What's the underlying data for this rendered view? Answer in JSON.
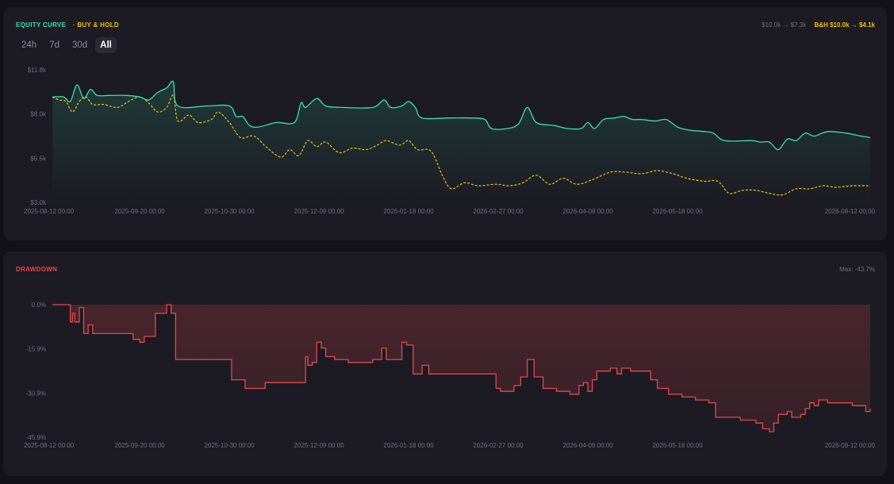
{
  "equity_panel": {
    "title": "EQUITY CURVE",
    "bh_legend": "· BUY & HOLD",
    "summary_strategy": "$10.0k → $7.3k",
    "summary_bh": "B&H $10.0k → $4.1k",
    "timeframes": [
      "24h",
      "7d",
      "30d",
      "All"
    ],
    "active_timeframe": "All"
  },
  "drawdown_panel": {
    "title": "DRAWDOWN",
    "max_label": "Max: -43.7%"
  },
  "colors": {
    "strategy": "#35e3b0",
    "buy_hold": "#f2c200",
    "drawdown": "#e54848"
  },
  "chart_data": [
    {
      "type": "line",
      "title": "EQUITY CURVE",
      "x": [
        "2025-08-12 00:00",
        "2025-09-20 00:00",
        "2025-10-30 00:00",
        "2025-12-09 00:00",
        "2026-01-18 00:00",
        "2026-02-27 00:00",
        "2026-04-08 00:00",
        "2026-05-18 00:00",
        "2026-08-12 00:00"
      ],
      "ytick_labels": [
        "$11.8k",
        "$8.0k",
        "$5.5k",
        "$3.0k"
      ],
      "ylim": [
        3000,
        11800
      ],
      "series": [
        {
          "name": "EQUITY CURVE",
          "points": [
            [
              "2025-08-12",
              10000
            ],
            [
              "2025-08-17",
              10000
            ],
            [
              "2025-08-20",
              9700
            ],
            [
              "2025-08-23",
              10800
            ],
            [
              "2025-08-26",
              9900
            ],
            [
              "2025-08-29",
              10500
            ],
            [
              "2025-09-01",
              10100
            ],
            [
              "2025-09-06",
              10100
            ],
            [
              "2025-09-14",
              10100
            ],
            [
              "2025-09-20",
              10000
            ],
            [
              "2025-09-24",
              9800
            ],
            [
              "2025-09-28",
              10300
            ],
            [
              "2025-10-02",
              10600
            ],
            [
              "2025-10-05",
              11000
            ],
            [
              "2025-10-07",
              9400
            ],
            [
              "2025-10-20",
              9400
            ],
            [
              "2025-10-30",
              9400
            ],
            [
              "2025-11-02",
              8700
            ],
            [
              "2025-11-05",
              8700
            ],
            [
              "2025-11-08",
              8100
            ],
            [
              "2025-11-12",
              8000
            ],
            [
              "2025-11-20",
              8300
            ],
            [
              "2025-11-28",
              8300
            ],
            [
              "2025-12-01",
              9600
            ],
            [
              "2025-12-03",
              9300
            ],
            [
              "2025-12-08",
              9900
            ],
            [
              "2025-12-12",
              9400
            ],
            [
              "2025-12-20",
              9300
            ],
            [
              "2026-01-02",
              9300
            ],
            [
              "2026-01-07",
              9800
            ],
            [
              "2026-01-10",
              9300
            ],
            [
              "2026-01-15",
              9400
            ],
            [
              "2026-01-18",
              9700
            ],
            [
              "2026-01-21",
              9300
            ],
            [
              "2026-01-24",
              8600
            ],
            [
              "2026-02-05",
              8600
            ],
            [
              "2026-02-15",
              8600
            ],
            [
              "2026-02-21",
              8500
            ],
            [
              "2026-02-24",
              7900
            ],
            [
              "2026-03-03",
              7900
            ],
            [
              "2026-03-08",
              8200
            ],
            [
              "2026-03-12",
              9300
            ],
            [
              "2026-03-16",
              8300
            ],
            [
              "2026-03-24",
              8100
            ],
            [
              "2026-03-30",
              7900
            ],
            [
              "2026-04-05",
              7900
            ],
            [
              "2026-04-08",
              8300
            ],
            [
              "2026-04-11",
              7900
            ],
            [
              "2026-04-15",
              8500
            ],
            [
              "2026-04-20",
              8600
            ],
            [
              "2026-04-24",
              8700
            ],
            [
              "2026-04-28",
              8500
            ],
            [
              "2026-05-02",
              8500
            ],
            [
              "2026-05-08",
              8400
            ],
            [
              "2026-05-13",
              8500
            ],
            [
              "2026-05-18",
              8000
            ],
            [
              "2026-05-23",
              7800
            ],
            [
              "2026-05-30",
              7700
            ],
            [
              "2026-06-03",
              7600
            ],
            [
              "2026-06-08",
              7100
            ],
            [
              "2026-06-20",
              7100
            ],
            [
              "2026-06-24",
              7000
            ],
            [
              "2026-06-28",
              7000
            ],
            [
              "2026-07-02",
              6500
            ],
            [
              "2026-07-06",
              7200
            ],
            [
              "2026-07-10",
              7100
            ],
            [
              "2026-07-14",
              7600
            ],
            [
              "2026-07-18",
              7400
            ],
            [
              "2026-07-24",
              7700
            ],
            [
              "2026-08-01",
              7600
            ],
            [
              "2026-08-08",
              7400
            ],
            [
              "2026-08-12",
              7300
            ]
          ]
        },
        {
          "name": "BUY & HOLD",
          "points": [
            [
              "2025-08-12",
              10000
            ],
            [
              "2025-08-15",
              9800
            ],
            [
              "2025-08-18",
              9700
            ],
            [
              "2025-08-21",
              9000
            ],
            [
              "2025-08-24",
              9700
            ],
            [
              "2025-08-27",
              10000
            ],
            [
              "2025-08-30",
              9500
            ],
            [
              "2025-09-04",
              9500
            ],
            [
              "2025-09-10",
              9300
            ],
            [
              "2025-09-15",
              9700
            ],
            [
              "2025-09-20",
              10000
            ],
            [
              "2025-09-24",
              9600
            ],
            [
              "2025-09-28",
              9000
            ],
            [
              "2025-10-02",
              9300
            ],
            [
              "2025-10-05",
              10100
            ],
            [
              "2025-10-07",
              8400
            ],
            [
              "2025-10-12",
              8800
            ],
            [
              "2025-10-16",
              8300
            ],
            [
              "2025-10-22",
              8500
            ],
            [
              "2025-10-25",
              9000
            ],
            [
              "2025-10-30",
              8300
            ],
            [
              "2025-11-04",
              7300
            ],
            [
              "2025-11-10",
              7400
            ],
            [
              "2025-11-16",
              6600
            ],
            [
              "2025-11-22",
              6000
            ],
            [
              "2025-11-26",
              6500
            ],
            [
              "2025-11-30",
              6100
            ],
            [
              "2025-12-04",
              7100
            ],
            [
              "2025-12-08",
              6700
            ],
            [
              "2025-12-12",
              7000
            ],
            [
              "2025-12-18",
              6300
            ],
            [
              "2025-12-24",
              6600
            ],
            [
              "2025-12-30",
              6500
            ],
            [
              "2026-01-04",
              6800
            ],
            [
              "2026-01-08",
              7100
            ],
            [
              "2026-01-14",
              6800
            ],
            [
              "2026-01-18",
              7100
            ],
            [
              "2026-01-22",
              6500
            ],
            [
              "2026-01-28",
              6400
            ],
            [
              "2026-02-02",
              4800
            ],
            [
              "2026-02-06",
              3900
            ],
            [
              "2026-02-12",
              4300
            ],
            [
              "2026-02-18",
              4100
            ],
            [
              "2026-02-26",
              4200
            ],
            [
              "2026-03-04",
              4100
            ],
            [
              "2026-03-10",
              4300
            ],
            [
              "2026-03-16",
              4800
            ],
            [
              "2026-03-22",
              4200
            ],
            [
              "2026-03-28",
              4600
            ],
            [
              "2026-04-03",
              4200
            ],
            [
              "2026-04-10",
              4500
            ],
            [
              "2026-04-18",
              5000
            ],
            [
              "2026-04-25",
              5000
            ],
            [
              "2026-05-02",
              4900
            ],
            [
              "2026-05-09",
              5100
            ],
            [
              "2026-05-16",
              4900
            ],
            [
              "2026-05-22",
              4600
            ],
            [
              "2026-05-30",
              4400
            ],
            [
              "2026-06-05",
              4400
            ],
            [
              "2026-06-10",
              3600
            ],
            [
              "2026-06-16",
              3800
            ],
            [
              "2026-06-22",
              3800
            ],
            [
              "2026-06-28",
              3600
            ],
            [
              "2026-07-04",
              3500
            ],
            [
              "2026-07-10",
              3900
            ],
            [
              "2026-07-16",
              3900
            ],
            [
              "2026-07-22",
              4100
            ],
            [
              "2026-07-28",
              4000
            ],
            [
              "2026-08-04",
              4100
            ],
            [
              "2026-08-12",
              4100
            ]
          ]
        }
      ]
    },
    {
      "type": "line",
      "title": "DRAWDOWN",
      "x": [
        "2025-08-12 00:00",
        "2025-09-20 00:00",
        "2025-10-30 00:00",
        "2025-12-09 00:00",
        "2026-01-18 00:00",
        "2026-02-27 00:00",
        "2026-04-08 00:00",
        "2026-05-18 00:00",
        "2026-08-12 00:00"
      ],
      "ytick_labels": [
        "0.0%",
        "-15.9%",
        "-30.9%",
        "-45.9%"
      ],
      "ylim": [
        -45.9,
        0
      ],
      "series": [
        {
          "name": "DRAWDOWN",
          "step": true,
          "points": [
            [
              "2025-08-12",
              0
            ],
            [
              "2025-08-19",
              0
            ],
            [
              "2025-08-20",
              -6
            ],
            [
              "2025-08-21",
              -3
            ],
            [
              "2025-08-22",
              -6
            ],
            [
              "2025-08-24",
              -1
            ],
            [
              "2025-08-26",
              -10
            ],
            [
              "2025-08-28",
              -7
            ],
            [
              "2025-08-30",
              -10
            ],
            [
              "2025-09-16",
              -10
            ],
            [
              "2025-09-17",
              -12
            ],
            [
              "2025-09-20",
              -13
            ],
            [
              "2025-09-22",
              -11
            ],
            [
              "2025-09-27",
              -3
            ],
            [
              "2025-10-02",
              0
            ],
            [
              "2025-10-04",
              -3
            ],
            [
              "2025-10-06",
              -19
            ],
            [
              "2025-10-31",
              -26
            ],
            [
              "2025-11-06",
              -29
            ],
            [
              "2025-11-15",
              -27
            ],
            [
              "2025-11-20",
              -27
            ],
            [
              "2025-11-26",
              -27
            ],
            [
              "2025-12-03",
              -18
            ],
            [
              "2025-12-04",
              -21
            ],
            [
              "2025-12-06",
              -20
            ],
            [
              "2025-12-08",
              -13
            ],
            [
              "2025-12-10",
              -15
            ],
            [
              "2025-12-12",
              -18
            ],
            [
              "2025-12-16",
              -19
            ],
            [
              "2025-12-22",
              -20
            ],
            [
              "2026-01-02",
              -19
            ],
            [
              "2026-01-04",
              -19
            ],
            [
              "2026-01-06",
              -15
            ],
            [
              "2026-01-08",
              -19
            ],
            [
              "2026-01-10",
              -19
            ],
            [
              "2026-01-15",
              -13
            ],
            [
              "2026-01-17",
              -14
            ],
            [
              "2026-01-20",
              -24
            ],
            [
              "2026-01-24",
              -21
            ],
            [
              "2026-01-27",
              -24
            ],
            [
              "2026-02-26",
              -29
            ],
            [
              "2026-02-28",
              -30
            ],
            [
              "2026-03-06",
              -28
            ],
            [
              "2026-03-09",
              -25
            ],
            [
              "2026-03-12",
              -19
            ],
            [
              "2026-03-15",
              -25
            ],
            [
              "2026-03-19",
              -29
            ],
            [
              "2026-03-25",
              -30
            ],
            [
              "2026-03-31",
              -31
            ],
            [
              "2026-04-04",
              -28
            ],
            [
              "2026-04-06",
              -27
            ],
            [
              "2026-04-08",
              -30
            ],
            [
              "2026-04-10",
              -26
            ],
            [
              "2026-04-12",
              -23
            ],
            [
              "2026-04-18",
              -22
            ],
            [
              "2026-04-21",
              -24
            ],
            [
              "2026-04-23",
              -22
            ],
            [
              "2026-04-27",
              -23
            ],
            [
              "2026-05-06",
              -26
            ],
            [
              "2026-05-09",
              -29
            ],
            [
              "2026-05-14",
              -31
            ],
            [
              "2026-05-20",
              -32
            ],
            [
              "2026-05-26",
              -33
            ],
            [
              "2026-06-01",
              -34
            ],
            [
              "2026-06-04",
              -39
            ],
            [
              "2026-06-15",
              -40
            ],
            [
              "2026-06-22",
              -41
            ],
            [
              "2026-06-25",
              -43
            ],
            [
              "2026-06-28",
              -44
            ],
            [
              "2026-06-30",
              -41
            ],
            [
              "2026-07-02",
              -38
            ],
            [
              "2026-07-06",
              -37
            ],
            [
              "2026-07-08",
              -39
            ],
            [
              "2026-07-12",
              -38
            ],
            [
              "2026-07-14",
              -36
            ],
            [
              "2026-07-16",
              -34
            ],
            [
              "2026-07-18",
              -35
            ],
            [
              "2026-07-20",
              -33
            ],
            [
              "2026-07-24",
              -34
            ],
            [
              "2026-07-29",
              -34
            ],
            [
              "2026-08-04",
              -35
            ],
            [
              "2026-08-10",
              -37
            ],
            [
              "2026-08-12",
              -36
            ]
          ]
        }
      ]
    }
  ]
}
